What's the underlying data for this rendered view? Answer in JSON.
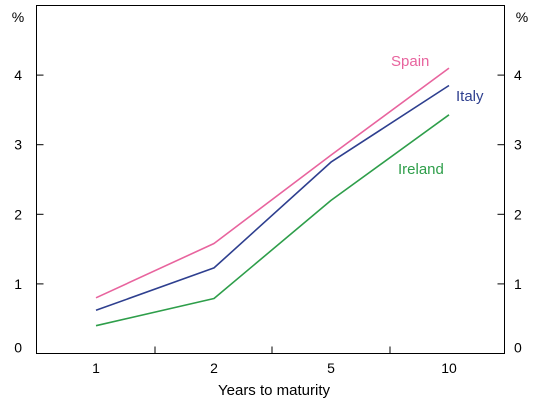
{
  "chart_data": {
    "type": "line",
    "xlabel": "Years to maturity",
    "ylabel": "%",
    "ylabel_right": "%",
    "categories": [
      "1",
      "2",
      "5",
      "10"
    ],
    "ylim": [
      0,
      5
    ],
    "yticks": [
      0,
      1,
      2,
      3,
      4
    ],
    "grid": false,
    "legend": "inline labels",
    "series": [
      {
        "name": "Spain",
        "color": "#e8649e",
        "values": [
          0.8,
          1.58,
          2.85,
          4.1
        ]
      },
      {
        "name": "Italy",
        "color": "#2e3f8f",
        "values": [
          0.62,
          1.23,
          2.75,
          3.85
        ]
      },
      {
        "name": "Ireland",
        "color": "#2e9e4a",
        "values": [
          0.4,
          0.79,
          2.2,
          3.43
        ]
      }
    ]
  }
}
